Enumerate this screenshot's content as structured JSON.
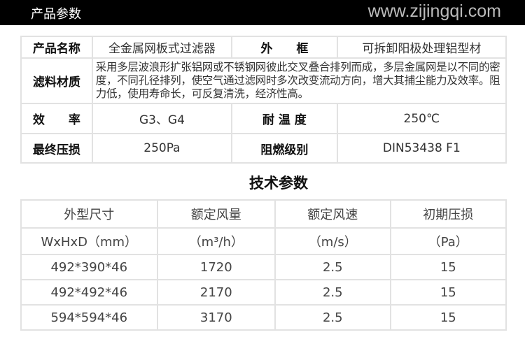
{
  "header": {
    "title": "产品参数",
    "website": "www.zijingqi.com"
  },
  "product_table": {
    "rows": [
      [
        {
          "k": "产品名称"
        },
        {
          "v": "全金属网板式过滤器"
        },
        {
          "k": "外　　框"
        },
        {
          "v": "可拆卸阳极处理铝型材"
        }
      ],
      [
        {
          "k": "滤料材质"
        },
        {
          "v": "采用多层波浪形扩张铝网或不锈钢网彼此交叉叠合排列而成，多层金属网是以不同的密度，不同孔径排列，使空气通过滤网时多次改变流动方向，增大其捕尘能力及效率。阻力低，使用寿命长，可反复清洗，经济性高。"
        }
      ],
      [
        {
          "k": "效　　率"
        },
        {
          "v": "G3、G4"
        },
        {
          "k": "耐 温 度"
        },
        {
          "v": "250℃"
        }
      ],
      [
        {
          "k": "最终压损"
        },
        {
          "v": "250Pa"
        },
        {
          "k": "阻燃级别"
        },
        {
          "v": "DIN53438 F1"
        }
      ]
    ]
  },
  "tech_title": "技术参数",
  "tech_table": {
    "headers": [
      "外型尺寸",
      "额定风量",
      "额定风速",
      "初期压损"
    ],
    "units": [
      "WxHxD（mm）",
      "（m³/h）",
      "（m/s）",
      "（Pa）"
    ],
    "rows": [
      [
        "492*390*46",
        "1720",
        "2.5",
        "15"
      ],
      [
        "492*492*46",
        "2170",
        "2.5",
        "15"
      ],
      [
        "594*594*46",
        "3170",
        "2.5",
        "15"
      ]
    ]
  }
}
